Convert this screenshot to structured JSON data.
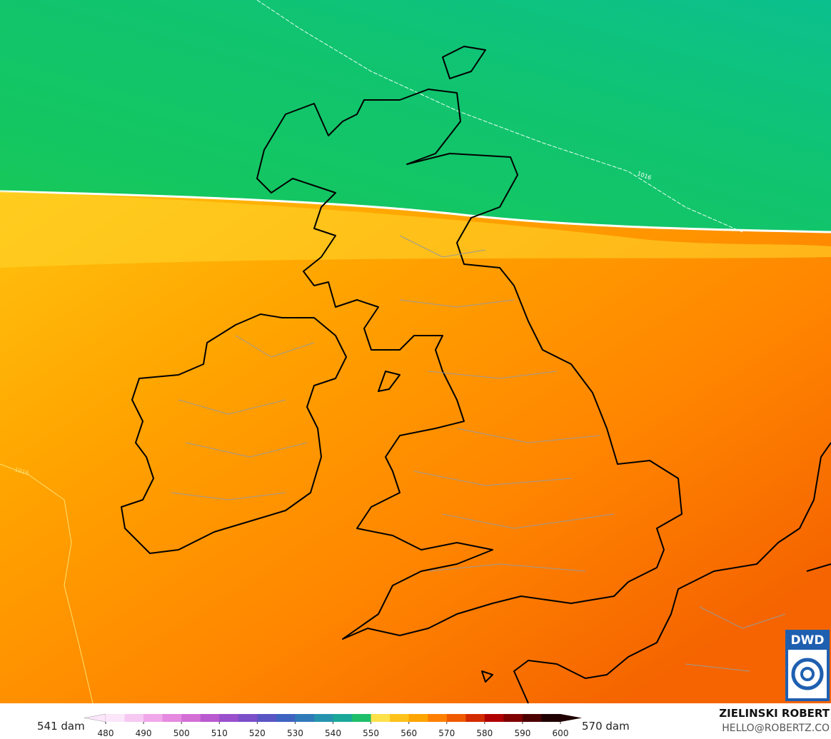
{
  "map": {
    "isobar_labels": [
      "1016",
      "1016"
    ],
    "logo": "DWD"
  },
  "colorbar": {
    "min_label": "541 dam",
    "max_label": "570 dam",
    "ticks": [
      480,
      490,
      500,
      510,
      520,
      530,
      540,
      550,
      560,
      570,
      580,
      590,
      600
    ],
    "colors": [
      "#fbe6fa",
      "#f6c8f2",
      "#f0a8ea",
      "#e58ae0",
      "#d46fd6",
      "#b95ad0",
      "#9a4fcc",
      "#7b4fc8",
      "#5a55c4",
      "#3e63c0",
      "#2f7ab8",
      "#2693ae",
      "#1aa89a",
      "#1dbf6a",
      "#ffe14a",
      "#ffc21a",
      "#ffa500",
      "#ff8000",
      "#f05a00",
      "#d42a00",
      "#b00000",
      "#800000",
      "#4d0000",
      "#200000"
    ]
  },
  "credit": {
    "author": "ZIELINSKI ROBERT",
    "contact": "HELLO@ROBERTZ.CO"
  }
}
